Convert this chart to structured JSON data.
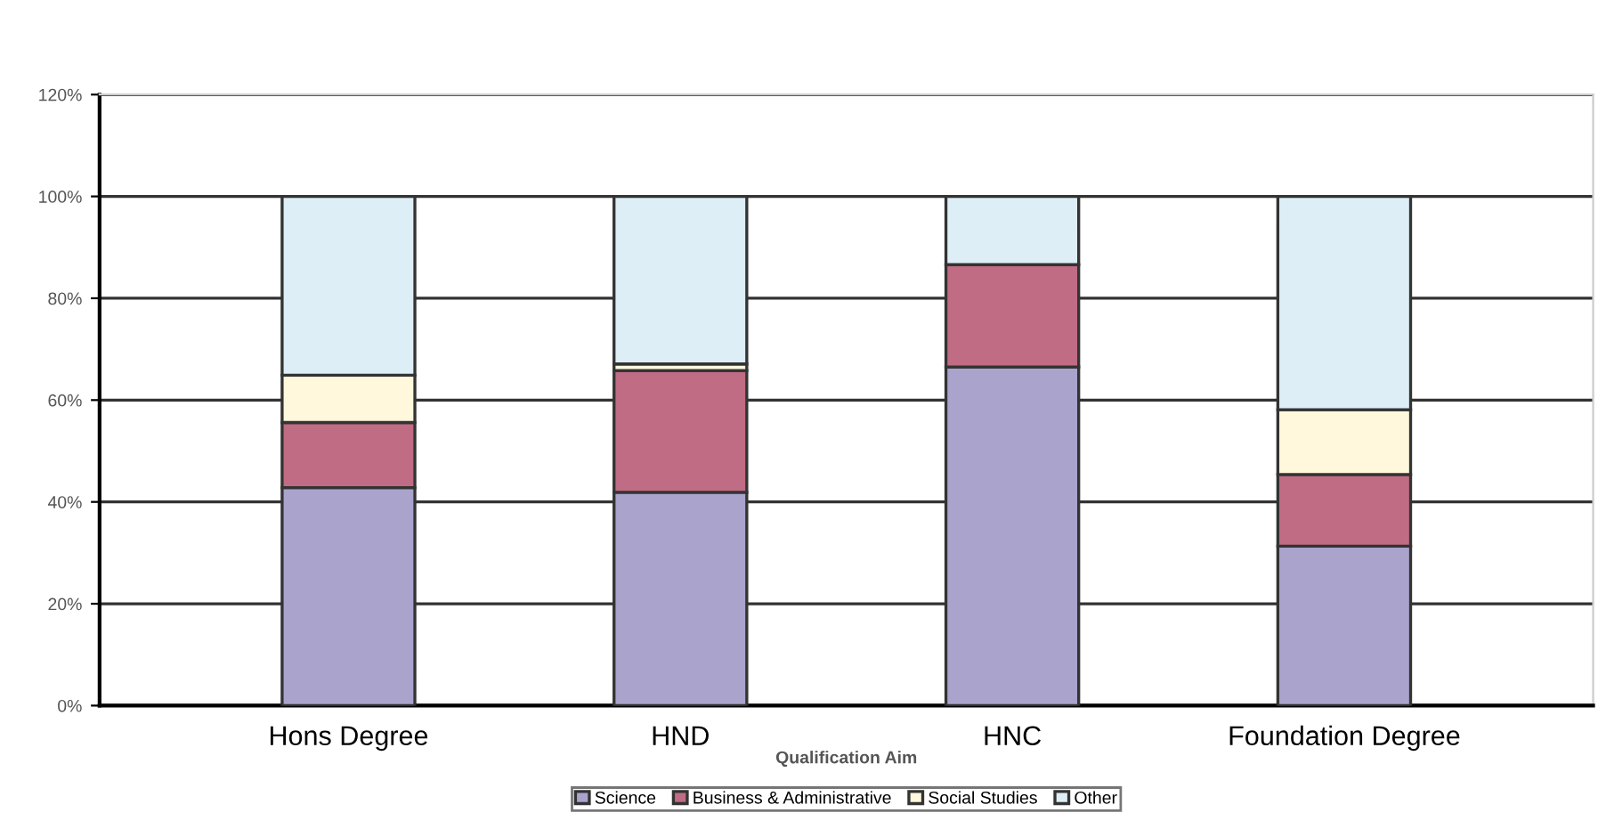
{
  "chart_data": {
    "type": "bar",
    "stacked": true,
    "xlabel": "Qualification Aim",
    "categories": [
      "Hons Degree",
      "HND",
      "HNC",
      "Foundation Degree"
    ],
    "series": [
      {
        "name": "Science",
        "color": "#aaa3cc",
        "values": [
          42.8,
          41.9,
          66.5,
          31.3
        ]
      },
      {
        "name": "Business & Administrative",
        "color": "#c06c84",
        "values": [
          12.8,
          23.9,
          20.1,
          14.1
        ]
      },
      {
        "name": "Social Studies",
        "color": "#fff8dc",
        "values": [
          9.3,
          1.3,
          null,
          12.7
        ]
      },
      {
        "name": "Other",
        "color": "#ddeef6",
        "values": [
          35.1,
          32.9,
          13.4,
          41.9
        ]
      }
    ],
    "ylim": [
      0,
      120
    ],
    "yticks": [
      {
        "value": 0,
        "label": "0%"
      },
      {
        "value": 20,
        "label": "20%"
      },
      {
        "value": 40,
        "label": "40%"
      },
      {
        "value": 60,
        "label": "60%"
      },
      {
        "value": 80,
        "label": "80%"
      },
      {
        "value": 100,
        "label": "100%"
      },
      {
        "value": 120,
        "label": "120%"
      }
    ],
    "grid": "y",
    "legend": "bottom"
  }
}
